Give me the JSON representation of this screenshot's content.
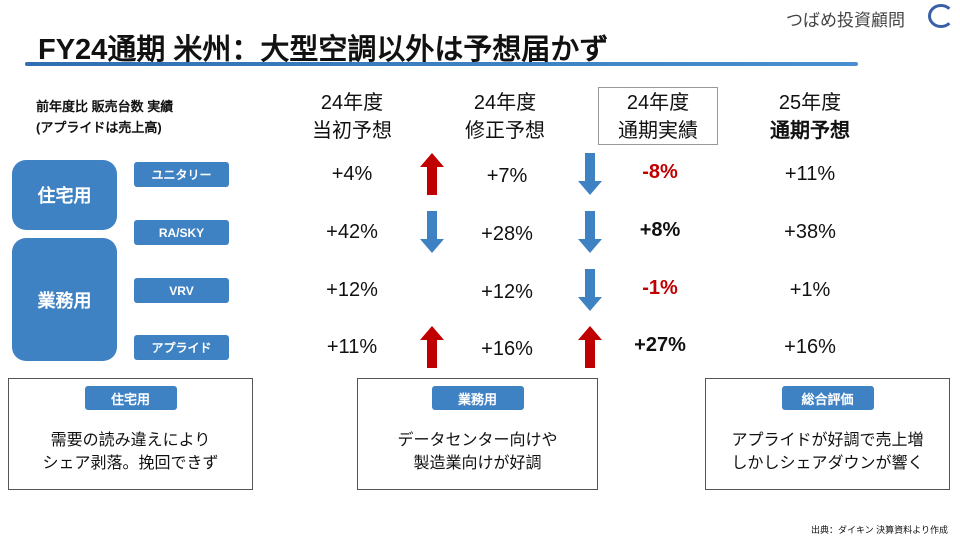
{
  "title": "FY24通期 米州：大型空調以外は予想届かず",
  "logo": "つばめ投資顧問",
  "note": {
    "line1": "前年度比 販売台数 実績",
    "line2": "(アプライドは売上高)"
  },
  "columns": [
    {
      "year": "24年度",
      "label": "当初予想"
    },
    {
      "year": "24年度",
      "label": "修正予想"
    },
    {
      "year": "24年度",
      "label": "通期実績"
    },
    {
      "year": "25年度",
      "label": "通期予想"
    }
  ],
  "categories": {
    "residential": "住宅用",
    "commercial": "業務用"
  },
  "rows": [
    {
      "label": "ユニタリー",
      "initial": "+4%",
      "revised": "+7%",
      "actual": "-8%",
      "fy25": "+11%"
    },
    {
      "label": "RA/SKY",
      "initial": "+42%",
      "revised": "+28%",
      "actual": "+8%",
      "fy25": "+38%"
    },
    {
      "label": "VRV",
      "initial": "+12%",
      "revised": "+12%",
      "actual": "-1%",
      "fy25": "+1%"
    },
    {
      "label": "アプライド",
      "initial": "+11%",
      "revised": "+16%",
      "actual": "+27%",
      "fy25": "+16%"
    }
  ],
  "arrows_revision": [
    "up",
    "down",
    "none",
    "up"
  ],
  "arrows_actual": [
    "down",
    "down",
    "down",
    "up"
  ],
  "colors": {
    "blue": "#3f82c4",
    "red": "#c00000"
  },
  "cards": [
    {
      "tab": "住宅用",
      "line1": "需要の読み違えにより",
      "line2": "シェア剥落。挽回できず"
    },
    {
      "tab": "業務用",
      "line1": "データセンター向けや",
      "line2": "製造業向けが好調"
    },
    {
      "tab": "総合評価",
      "line1": "アプライドが好調で売上増",
      "line2": "しかしシェアダウンが響く"
    }
  ],
  "source": "出典：ダイキン 決算資料より作成"
}
